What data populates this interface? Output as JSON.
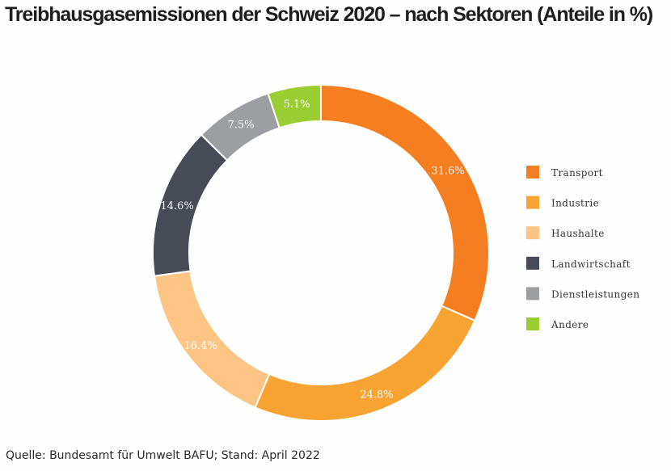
{
  "title": "Treibhausgasemissionen der Schweiz 2020 – nach Sektoren (Anteile in %)",
  "source": "Quelle: Bundesamt für Umwelt BAFU; Stand: April 2022",
  "chart_data": {
    "type": "pie",
    "variant": "donut",
    "title": "Treibhausgasemissionen der Schweiz 2020 – nach Sektoren (Anteile in %)",
    "legend_position": "right",
    "slices": [
      {
        "name": "Transport",
        "value": 31.6,
        "label": "31.6%",
        "color": "#f47e20"
      },
      {
        "name": "Industrie",
        "value": 24.8,
        "label": "24.8%",
        "color": "#f8a432"
      },
      {
        "name": "Haushalte",
        "value": 16.4,
        "label": "16.4%",
        "color": "#fdc584"
      },
      {
        "name": "Landwirtschaft",
        "value": 14.6,
        "label": "14.6%",
        "color": "#464b55"
      },
      {
        "name": "Dienstleistungen",
        "value": 7.5,
        "label": "7.5%",
        "color": "#9d9ea2"
      },
      {
        "name": "Andere",
        "value": 5.1,
        "label": "5.1%",
        "color": "#9acd32"
      }
    ]
  }
}
